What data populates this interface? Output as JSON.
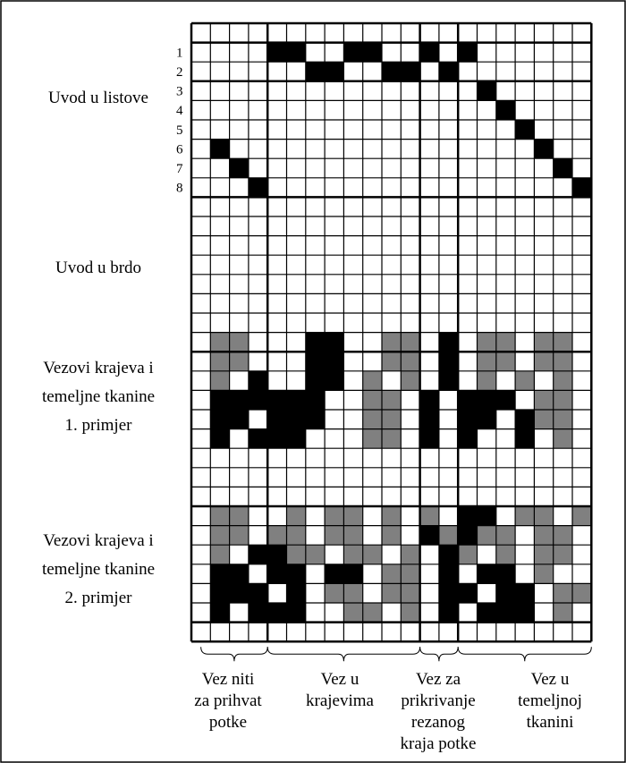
{
  "row_numbers": [
    "1",
    "2",
    "3",
    "4",
    "5",
    "6",
    "7",
    "8"
  ],
  "left_labels": [
    {
      "lines": [
        "Uvod  u listove"
      ]
    },
    {
      "lines": [
        "Uvod u brdo"
      ]
    },
    {
      "lines": [
        "Vezovi krajeva i",
        "temeljne tkanine",
        "1. primjer"
      ]
    },
    {
      "lines": [
        "Vezovi krajeva i",
        "temeljne tkanine",
        "2. primjer"
      ]
    }
  ],
  "bottom_labels": [
    {
      "lines": [
        "Vez niti",
        "za prihvat",
        "potke"
      ]
    },
    {
      "lines": [
        "Vez u",
        "krajevima"
      ]
    },
    {
      "lines": [
        "Vez za",
        "prikrivanje",
        "rezanog",
        "kraja potke"
      ]
    },
    {
      "lines": [
        "Vez u",
        "temeljnoj",
        "tkanini"
      ]
    }
  ]
}
